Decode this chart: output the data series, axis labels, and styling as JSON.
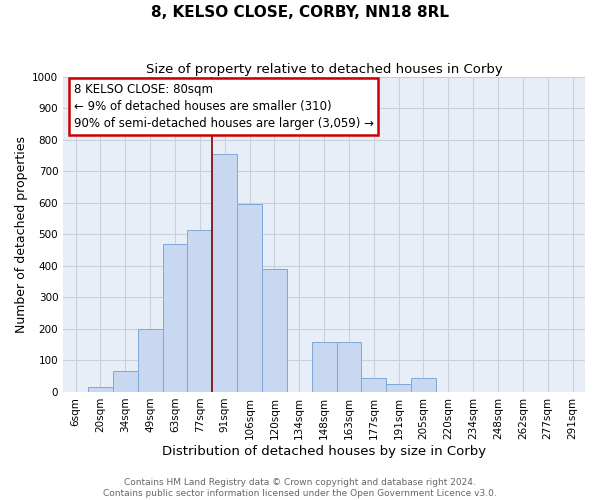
{
  "title": "8, KELSO CLOSE, CORBY, NN18 8RL",
  "subtitle": "Size of property relative to detached houses in Corby",
  "xlabel": "Distribution of detached houses by size in Corby",
  "ylabel": "Number of detached properties",
  "footer_lines": [
    "Contains HM Land Registry data © Crown copyright and database right 2024.",
    "Contains public sector information licensed under the Open Government Licence v3.0."
  ],
  "categories": [
    "6sqm",
    "20sqm",
    "34sqm",
    "49sqm",
    "63sqm",
    "77sqm",
    "91sqm",
    "106sqm",
    "120sqm",
    "134sqm",
    "148sqm",
    "163sqm",
    "177sqm",
    "191sqm",
    "205sqm",
    "220sqm",
    "234sqm",
    "248sqm",
    "262sqm",
    "277sqm",
    "291sqm"
  ],
  "values": [
    0,
    15,
    65,
    200,
    470,
    515,
    755,
    595,
    390,
    0,
    160,
    160,
    45,
    25,
    45,
    0,
    0,
    0,
    0,
    0,
    0
  ],
  "bar_color": "#c8d8f0",
  "bar_edge_color": "#7fa8d8",
  "annotation_box_text_line1": "8 KELSO CLOSE: 80sqm",
  "annotation_box_text_line2": "← 9% of detached houses are smaller (310)",
  "annotation_box_text_line3": "90% of semi-detached houses are larger (3,059) →",
  "annotation_box_color": "white",
  "annotation_box_edge_color": "#cc0000",
  "vertical_line_color": "#8b0000",
  "bg_color": "#e8eef8",
  "ylim": [
    0,
    1000
  ],
  "yticks": [
    0,
    100,
    200,
    300,
    400,
    500,
    600,
    700,
    800,
    900,
    1000
  ],
  "title_fontsize": 11,
  "subtitle_fontsize": 9.5,
  "xlabel_fontsize": 9.5,
  "ylabel_fontsize": 9,
  "tick_fontsize": 7.5,
  "annotation_fontsize": 8.5,
  "footer_fontsize": 6.5
}
